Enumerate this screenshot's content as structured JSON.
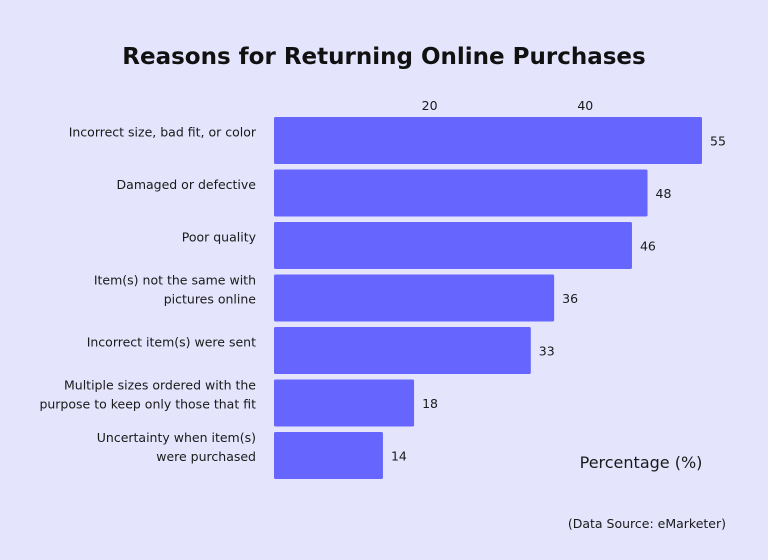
{
  "chart_data": {
    "type": "bar",
    "orientation": "horizontal",
    "title": "Reasons for Returning Online Purchases",
    "xlabel": "Percentage (%)",
    "ylabel": "",
    "categories": [
      "Incorrect size, bad fit, or color",
      "Damaged or defective",
      "Poor quality",
      "Item(s) not the same with pictures online",
      "Incorrect item(s) were sent",
      "Multiple sizes ordered with the purpose to keep only those that fit",
      "Uncertainty when item(s) were purchased"
    ],
    "category_lines": [
      [
        "Incorrect size, bad fit, or color"
      ],
      [
        "Damaged or defective"
      ],
      [
        "Poor quality"
      ],
      [
        "Item(s) not the same with",
        "pictures online"
      ],
      [
        "Incorrect item(s) were sent"
      ],
      [
        "Multiple sizes ordered with the",
        "purpose to keep only those that fit"
      ],
      [
        "Uncertainty when item(s)",
        "were purchased"
      ]
    ],
    "values": [
      55,
      48,
      46,
      36,
      33,
      18,
      14
    ],
    "xticks": [
      20,
      40
    ],
    "xlim": [
      0,
      55
    ],
    "grid": false,
    "bar_color": "#6666ff",
    "source": "(Data Source: eMarketer)"
  }
}
